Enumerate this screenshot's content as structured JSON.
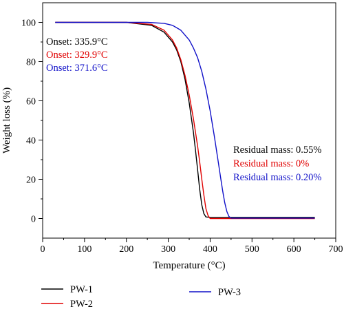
{
  "chart_data": {
    "type": "line",
    "xlabel": "Temperature (°C)",
    "ylabel": "Weight loss (%)",
    "xlim": [
      0,
      700
    ],
    "ylim": [
      -10,
      110
    ],
    "xticks": [
      0,
      100,
      200,
      300,
      400,
      500,
      600,
      700
    ],
    "yticks": [
      0,
      20,
      40,
      60,
      80,
      100
    ],
    "grid": false,
    "legend_placement": "below",
    "series": [
      {
        "name": "PW-1",
        "color": "#000000",
        "x": [
          30,
          200,
          260,
          290,
          310,
          320,
          330,
          340,
          350,
          360,
          365,
          370,
          375,
          380,
          385,
          390,
          400,
          450,
          650
        ],
        "y": [
          100,
          100,
          98.5,
          95,
          90,
          86,
          80,
          71,
          59,
          44,
          35,
          25,
          15,
          7,
          2.5,
          0.8,
          0.55,
          0.55,
          0.55
        ]
      },
      {
        "name": "PW-2",
        "color": "#e00000",
        "x": [
          30,
          200,
          260,
          290,
          310,
          320,
          330,
          340,
          350,
          360,
          370,
          375,
          380,
          385,
          390,
          395,
          400,
          450,
          650
        ],
        "y": [
          100,
          100,
          99,
          96,
          91,
          87,
          81,
          73,
          63,
          51,
          37,
          29,
          20,
          12,
          5,
          1.5,
          0,
          0,
          0
        ]
      },
      {
        "name": "PW-3",
        "color": "#1010c8",
        "x": [
          30,
          250,
          290,
          310,
          330,
          350,
          360,
          370,
          380,
          390,
          400,
          410,
          420,
          425,
          430,
          435,
          440,
          445,
          450,
          650
        ],
        "y": [
          100,
          100,
          99.5,
          98.5,
          96,
          91,
          87,
          82,
          75,
          66,
          55,
          42,
          28,
          21,
          14,
          8,
          3.5,
          1,
          0.2,
          0.2
        ]
      }
    ],
    "annotations": {
      "onset": [
        {
          "text": "Onset: 335.9°C",
          "color": "#000000"
        },
        {
          "text": "Onset: 329.9°C",
          "color": "#e00000"
        },
        {
          "text": "Onset: 371.6°C",
          "color": "#1010c8"
        }
      ],
      "residual": [
        {
          "text": "Residual mass: 0.55%",
          "color": "#000000"
        },
        {
          "text": "Residual mass: 0%",
          "color": "#e00000"
        },
        {
          "text": "Residual mass: 0.20%",
          "color": "#1010c8"
        }
      ]
    }
  }
}
